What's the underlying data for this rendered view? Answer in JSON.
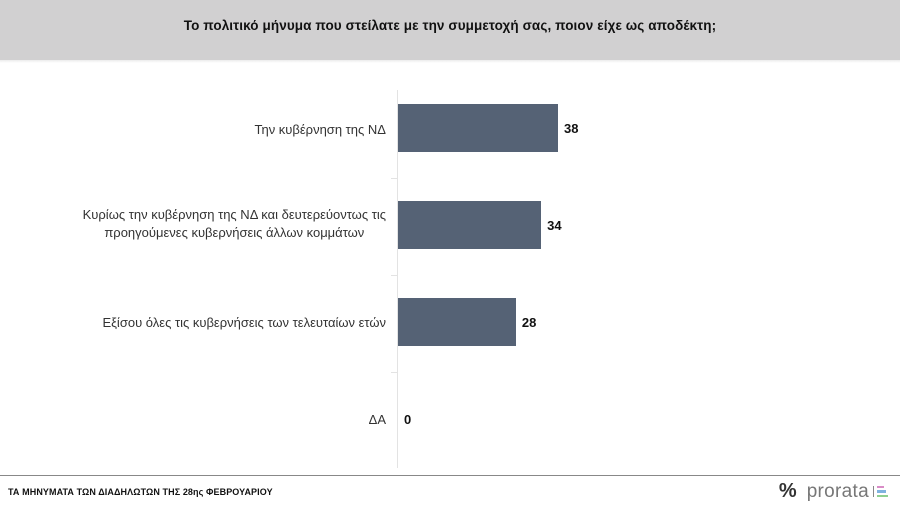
{
  "header": {
    "title": "Το πολιτικό μήνυμα που στείλατε με την συμμετοχή σας, ποιον είχε ως αποδέκτη;"
  },
  "chart_data": {
    "type": "bar",
    "orientation": "horizontal",
    "title": "Το πολιτικό μήνυμα που στείλατε με την συμμετοχή σας, ποιον είχε ως αποδέκτη;",
    "categories": [
      "Την κυβέρνηση της ΝΔ",
      "Κυρίως την κυβέρνηση της ΝΔ και δευτερεύοντως τις προηγούμενες κυβερνήσεις άλλων κομμάτων",
      "Εξίσου όλες τις κυβερνήσεις των τελευταίων ετών",
      "ΔΑ"
    ],
    "category_lines": [
      [
        "Την κυβέρνηση της ΝΔ"
      ],
      [
        "Κυρίως την κυβέρνηση της ΝΔ και δευτερεύοντως τις",
        "προηγούμενες κυβερνήσεις άλλων κομμάτων"
      ],
      [
        "Εξίσου όλες τις κυβερνήσεις των τελευταίων ετών"
      ],
      [
        "ΔΑ"
      ]
    ],
    "values": [
      38,
      34,
      28,
      0
    ],
    "value_labels": [
      "38",
      "34",
      "28",
      "0"
    ],
    "xlabel": "",
    "ylabel": "",
    "xlim": [
      0,
      40
    ],
    "grid": false,
    "legend": null,
    "bar_color": "#556275"
  },
  "footer": {
    "caption": "ΤΑ ΜΗΝΥΜΑΤΑ ΤΩΝ ΔΙΑΔΗΛΩΤΩΝ ΤΗΣ 28ης ΦΕΒΡΟΥΑΡΙΟΥ",
    "logo_symbol": "%",
    "logo_name": "prorata",
    "logo_colors": [
      "#d98cc7",
      "#7fb3e0",
      "#8fd08f"
    ]
  }
}
